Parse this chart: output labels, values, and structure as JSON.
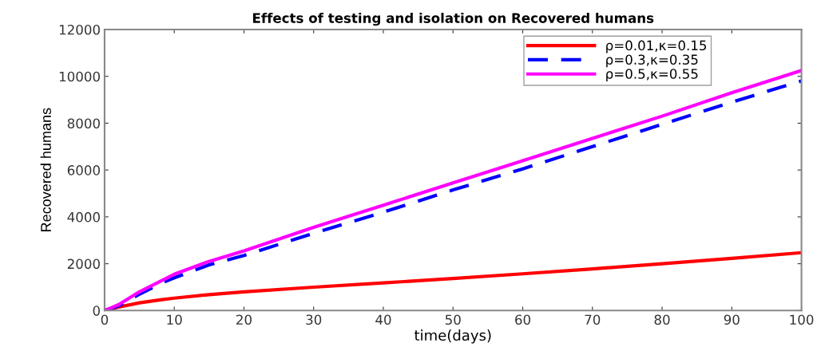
{
  "chart_data": {
    "type": "line",
    "title": "Effects of testing and isolation on Recovered humans",
    "xlabel": "time(days)",
    "ylabel": "Recovered humans",
    "x": [
      0,
      2,
      5,
      8,
      10,
      15,
      20,
      30,
      40,
      50,
      60,
      70,
      80,
      90,
      100
    ],
    "series": [
      {
        "name": "ρ=0.01,κ=0.15",
        "color": "#ff0000",
        "line_style": "solid",
        "values": [
          0,
          150,
          330,
          460,
          530,
          680,
          800,
          1000,
          1180,
          1370,
          1570,
          1780,
          2000,
          2230,
          2470
        ]
      },
      {
        "name": "ρ=0.3,κ=0.35",
        "color": "#0000ff",
        "line_style": "dashed",
        "values": [
          0,
          200,
          700,
          1150,
          1400,
          1950,
          2350,
          3300,
          4200,
          5150,
          6050,
          7000,
          7950,
          8900,
          9800
        ]
      },
      {
        "name": "ρ=0.5,κ=0.55",
        "color": "#ff00ff",
        "line_style": "solid",
        "values": [
          0,
          250,
          800,
          1250,
          1550,
          2100,
          2550,
          3550,
          4500,
          5450,
          6400,
          7350,
          8300,
          9300,
          10250
        ]
      }
    ],
    "xlim": [
      0,
      100
    ],
    "xticks": [
      0,
      10,
      20,
      30,
      40,
      50,
      60,
      70,
      80,
      90,
      100
    ],
    "ylim": [
      0,
      12000
    ],
    "yticks": [
      0,
      2000,
      4000,
      6000,
      8000,
      10000,
      12000
    ],
    "grid": false,
    "legend": "top right",
    "marker": "none"
  }
}
